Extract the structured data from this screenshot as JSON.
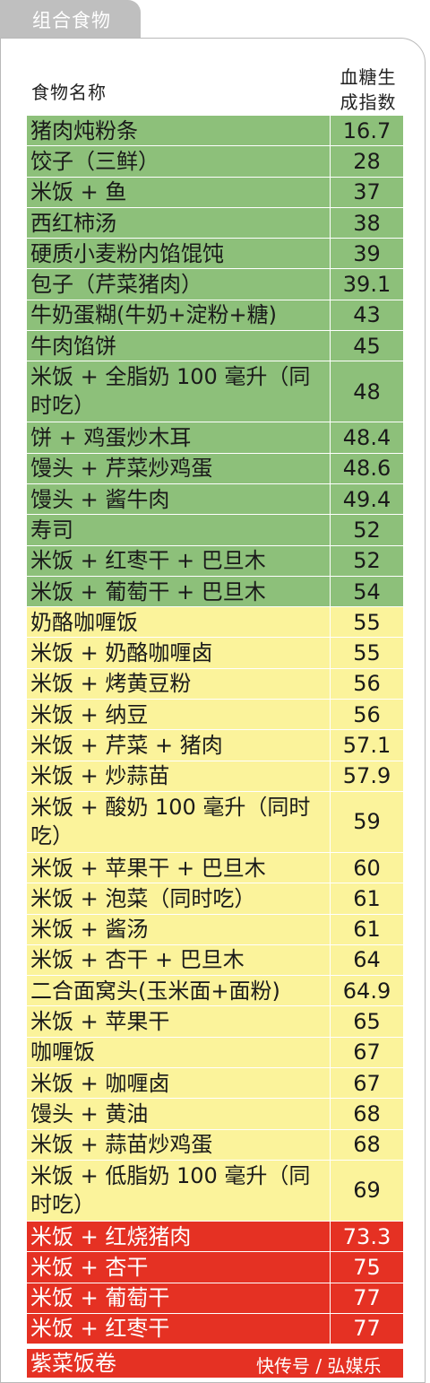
{
  "section_tab": "组合食物",
  "header": {
    "name_col": "食物名称",
    "gi_col_line1": "血糖生",
    "gi_col_line2": "成指数"
  },
  "rows": [
    {
      "name": "猪肉炖粉条",
      "gi": "16.7",
      "level": "green"
    },
    {
      "name": "饺子（三鲜）",
      "gi": "28",
      "level": "green"
    },
    {
      "name": "米饭 + 鱼",
      "gi": "37",
      "level": "green"
    },
    {
      "name": "西红柿汤",
      "gi": "38",
      "level": "green"
    },
    {
      "name": "硬质小麦粉内馅馄饨",
      "gi": "39",
      "level": "green"
    },
    {
      "name": "包子（芹菜猪肉）",
      "gi": "39.1",
      "level": "green"
    },
    {
      "name": "牛奶蛋糊(牛奶+淀粉+糖)",
      "gi": "43",
      "level": "green"
    },
    {
      "name": "牛肉馅饼",
      "gi": "45",
      "level": "green"
    },
    {
      "name": "米饭 + 全脂奶 100 毫升（同时吃）",
      "gi": "48",
      "level": "green",
      "tall": true
    },
    {
      "name": "饼 + 鸡蛋炒木耳",
      "gi": "48.4",
      "level": "green"
    },
    {
      "name": "馒头 + 芹菜炒鸡蛋",
      "gi": "48.6",
      "level": "green"
    },
    {
      "name": "馒头 + 酱牛肉",
      "gi": "49.4",
      "level": "green"
    },
    {
      "name": "寿司",
      "gi": "52",
      "level": "green"
    },
    {
      "name": "米饭 + 红枣干 + 巴旦木",
      "gi": "52",
      "level": "green"
    },
    {
      "name": "米饭 + 葡萄干 + 巴旦木",
      "gi": "54",
      "level": "green"
    },
    {
      "name": "奶酪咖喱饭",
      "gi": "55",
      "level": "yellow"
    },
    {
      "name": "米饭 + 奶酪咖喱卤",
      "gi": "55",
      "level": "yellow"
    },
    {
      "name": "米饭 + 烤黄豆粉",
      "gi": "56",
      "level": "yellow"
    },
    {
      "name": "米饭 + 纳豆",
      "gi": "56",
      "level": "yellow"
    },
    {
      "name": "米饭 + 芹菜 + 猪肉",
      "gi": "57.1",
      "level": "yellow"
    },
    {
      "name": "米饭 + 炒蒜苗",
      "gi": "57.9",
      "level": "yellow"
    },
    {
      "name": "米饭 + 酸奶 100 毫升（同时吃）",
      "gi": "59",
      "level": "yellow",
      "tall": true
    },
    {
      "name": "米饭 + 苹果干 + 巴旦木",
      "gi": "60",
      "level": "yellow"
    },
    {
      "name": "米饭 + 泡菜（同时吃）",
      "gi": "61",
      "level": "yellow"
    },
    {
      "name": "米饭 + 酱汤",
      "gi": "61",
      "level": "yellow"
    },
    {
      "name": "米饭 + 杏干 + 巴旦木",
      "gi": "64",
      "level": "yellow"
    },
    {
      "name": "二合面窝头(玉米面+面粉)",
      "gi": "64.9",
      "level": "yellow"
    },
    {
      "name": "米饭 + 苹果干",
      "gi": "65",
      "level": "yellow"
    },
    {
      "name": "咖喱饭",
      "gi": "67",
      "level": "yellow"
    },
    {
      "name": "米饭 + 咖喱卤",
      "gi": "67",
      "level": "yellow"
    },
    {
      "name": "馒头 + 黄油",
      "gi": "68",
      "level": "yellow"
    },
    {
      "name": "米饭 + 蒜苗炒鸡蛋",
      "gi": "68",
      "level": "yellow"
    },
    {
      "name": "米饭 + 低脂奶 100 毫升（同时吃）",
      "gi": "69",
      "level": "yellow",
      "tall": true
    },
    {
      "name": "米饭 + 红烧猪肉",
      "gi": "73.3",
      "level": "red"
    },
    {
      "name": "米饭 + 杏干",
      "gi": "75",
      "level": "red"
    },
    {
      "name": "米饭 + 葡萄干",
      "gi": "77",
      "level": "red"
    },
    {
      "name": "米饭 + 红枣干",
      "gi": "77",
      "level": "red"
    }
  ],
  "last_row_name": "紫菜饭卷",
  "watermark": "快传号 / 弘媒乐"
}
